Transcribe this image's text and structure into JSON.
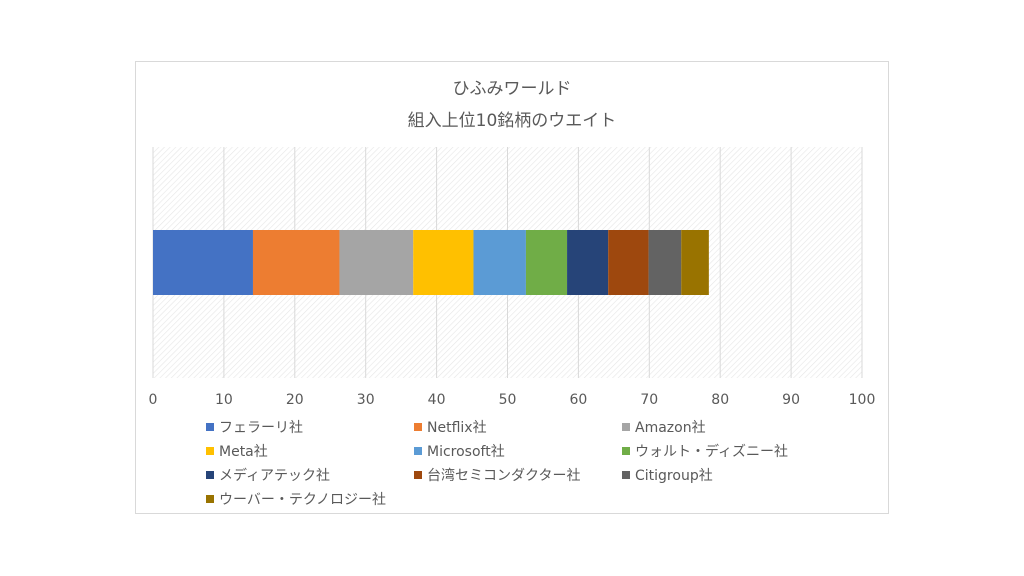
{
  "chart_data": {
    "type": "bar",
    "orientation": "horizontal",
    "stacked": true,
    "title": "ひふみワールド",
    "subtitle": "組入上位10銘柄のウエイト",
    "xlim": [
      0,
      100
    ],
    "xticks": [
      0,
      10,
      20,
      30,
      40,
      50,
      60,
      70,
      80,
      90,
      100
    ],
    "grid": true,
    "legend_position": "bottom",
    "series": [
      {
        "name": "フェラーリ社",
        "values": [
          14.1
        ],
        "color": "#4472c4"
      },
      {
        "name": "Netflix社",
        "values": [
          12.2
        ],
        "color": "#ed7d31"
      },
      {
        "name": "Amazon社",
        "values": [
          10.4
        ],
        "color": "#a5a5a5"
      },
      {
        "name": "Meta社",
        "values": [
          8.5
        ],
        "color": "#ffc000"
      },
      {
        "name": "Microsoft社",
        "values": [
          7.4
        ],
        "color": "#5b9bd5"
      },
      {
        "name": "ウォルト・ディズニー社",
        "values": [
          5.8
        ],
        "color": "#70ad47"
      },
      {
        "name": "メディアテック社",
        "values": [
          5.8
        ],
        "color": "#264478"
      },
      {
        "name": "台湾セミコンダクター社",
        "values": [
          5.7
        ],
        "color": "#9e480e"
      },
      {
        "name": "Citigroup社",
        "values": [
          4.6
        ],
        "color": "#636363"
      },
      {
        "name": "ウーバー・テクノロジー社",
        "values": [
          3.9
        ],
        "color": "#997300"
      }
    ]
  }
}
